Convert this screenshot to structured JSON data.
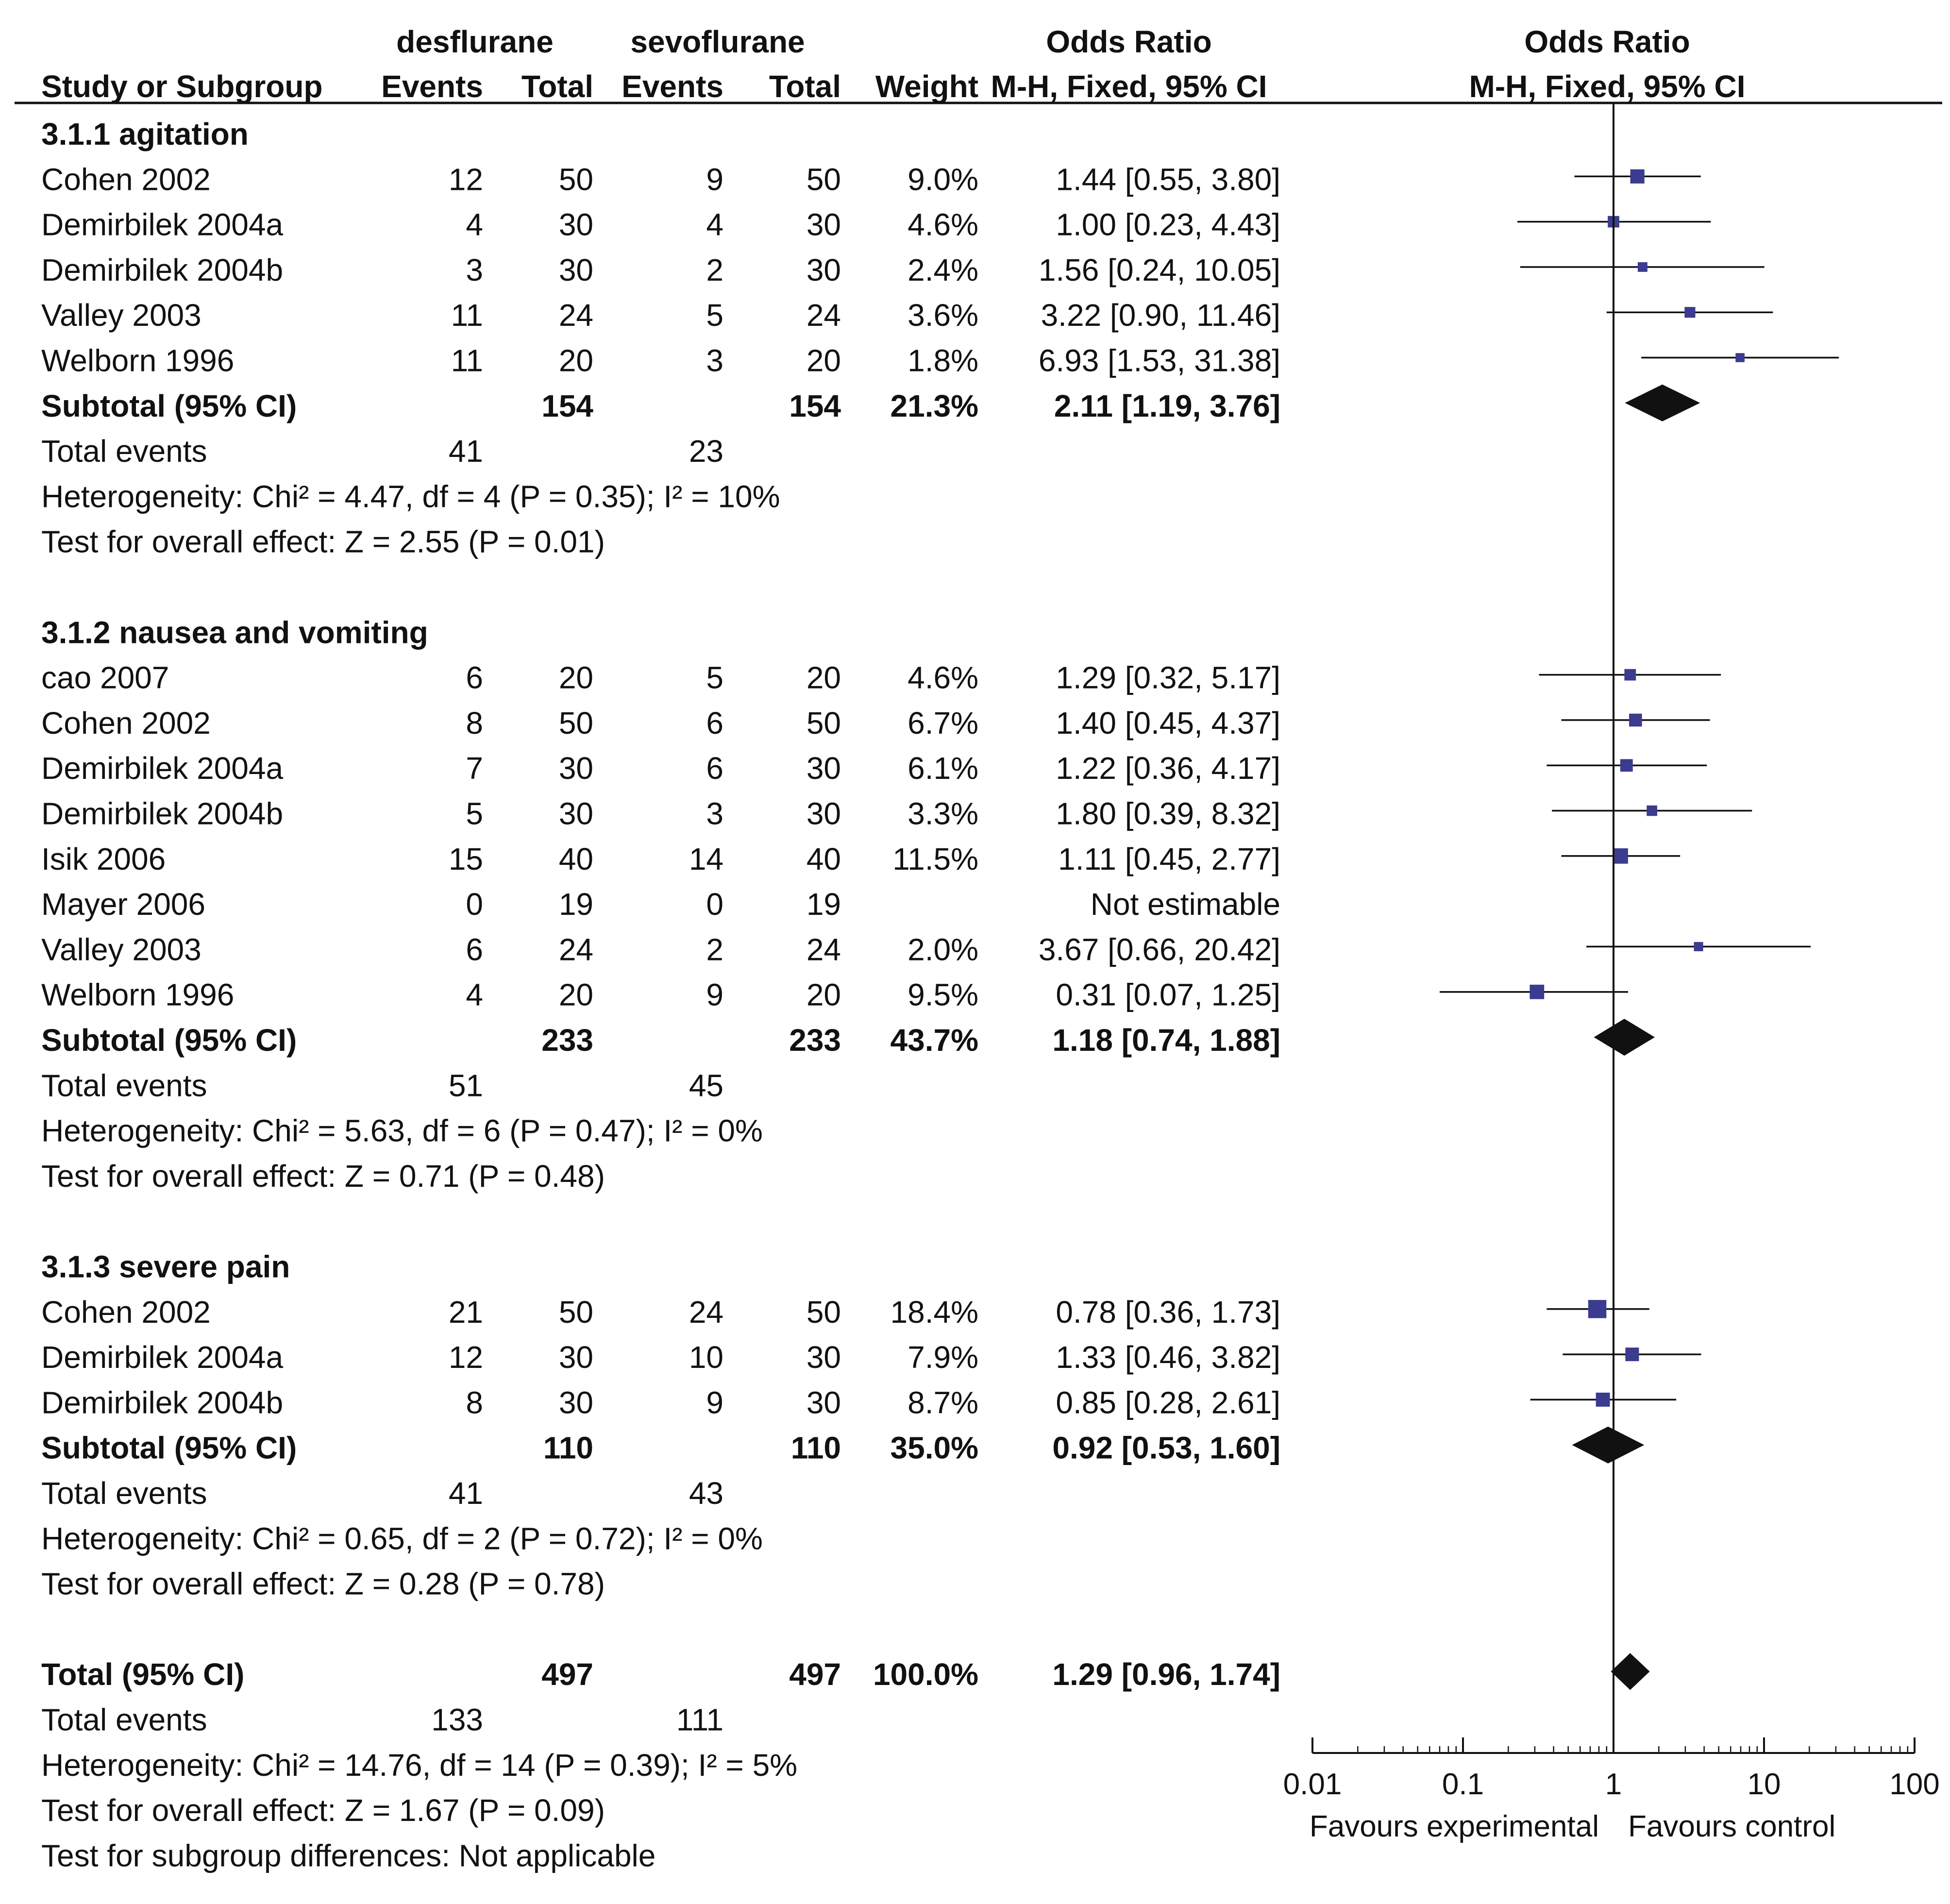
{
  "header": {
    "group1": "desflurane",
    "group2": "sevoflurane",
    "or_title": "Odds Ratio",
    "or_method": "M-H, Fixed, 95% CI",
    "plot_title": "Odds Ratio",
    "plot_method": "M-H, Fixed, 95% CI",
    "study_col": "Study or Subgroup",
    "events": "Events",
    "total": "Total",
    "weight": "Weight"
  },
  "chart_data": {
    "type": "forest",
    "x_scale": "log",
    "xlim": [
      0.01,
      100
    ],
    "x_ticks": [
      "0.01",
      "0.1",
      "1",
      "10",
      "100"
    ],
    "x_tick_values": [
      0.01,
      0.1,
      1,
      10,
      100
    ],
    "x_left_label": "Favours experimental",
    "x_right_label": "Favours control",
    "subgroups": [
      {
        "title": "3.1.1 agitation",
        "studies": [
          {
            "name": "Cohen 2002",
            "e1": "12",
            "t1": "50",
            "e2": "9",
            "t2": "50",
            "weight": "9.0%",
            "ci_text": "1.44 [0.55, 3.80]",
            "or": 1.44,
            "lo": 0.55,
            "hi": 3.8
          },
          {
            "name": "Demirbilek 2004a",
            "e1": "4",
            "t1": "30",
            "e2": "4",
            "t2": "30",
            "weight": "4.6%",
            "ci_text": "1.00 [0.23, 4.43]",
            "or": 1.0,
            "lo": 0.23,
            "hi": 4.43
          },
          {
            "name": "Demirbilek 2004b",
            "e1": "3",
            "t1": "30",
            "e2": "2",
            "t2": "30",
            "weight": "2.4%",
            "ci_text": "1.56 [0.24, 10.05]",
            "or": 1.56,
            "lo": 0.24,
            "hi": 10.05
          },
          {
            "name": "Valley 2003",
            "e1": "11",
            "t1": "24",
            "e2": "5",
            "t2": "24",
            "weight": "3.6%",
            "ci_text": "3.22 [0.90, 11.46]",
            "or": 3.22,
            "lo": 0.9,
            "hi": 11.46
          },
          {
            "name": "Welborn 1996",
            "e1": "11",
            "t1": "20",
            "e2": "3",
            "t2": "20",
            "weight": "1.8%",
            "ci_text": "6.93 [1.53, 31.38]",
            "or": 6.93,
            "lo": 1.53,
            "hi": 31.38
          }
        ],
        "subtotal": {
          "label": "Subtotal (95% CI)",
          "t1": "154",
          "t2": "154",
          "weight": "21.3%",
          "ci_text": "2.11 [1.19, 3.76]",
          "or": 2.11,
          "lo": 1.19,
          "hi": 3.76
        },
        "events_label": "Total events",
        "events1": "41",
        "events2": "23",
        "heterogeneity": "Heterogeneity: Chi² = 4.47, df = 4 (P = 0.35); I² = 10%",
        "overall": "Test for overall effect: Z = 2.55 (P = 0.01)"
      },
      {
        "title": "3.1.2 nausea and vomiting",
        "studies": [
          {
            "name": "cao 2007",
            "e1": "6",
            "t1": "20",
            "e2": "5",
            "t2": "20",
            "weight": "4.6%",
            "ci_text": "1.29 [0.32, 5.17]",
            "or": 1.29,
            "lo": 0.32,
            "hi": 5.17
          },
          {
            "name": "Cohen 2002",
            "e1": "8",
            "t1": "50",
            "e2": "6",
            "t2": "50",
            "weight": "6.7%",
            "ci_text": "1.40 [0.45, 4.37]",
            "or": 1.4,
            "lo": 0.45,
            "hi": 4.37
          },
          {
            "name": "Demirbilek 2004a",
            "e1": "7",
            "t1": "30",
            "e2": "6",
            "t2": "30",
            "weight": "6.1%",
            "ci_text": "1.22 [0.36, 4.17]",
            "or": 1.22,
            "lo": 0.36,
            "hi": 4.17
          },
          {
            "name": "Demirbilek 2004b",
            "e1": "5",
            "t1": "30",
            "e2": "3",
            "t2": "30",
            "weight": "3.3%",
            "ci_text": "1.80 [0.39, 8.32]",
            "or": 1.8,
            "lo": 0.39,
            "hi": 8.32
          },
          {
            "name": "Isik 2006",
            "e1": "15",
            "t1": "40",
            "e2": "14",
            "t2": "40",
            "weight": "11.5%",
            "ci_text": "1.11 [0.45, 2.77]",
            "or": 1.11,
            "lo": 0.45,
            "hi": 2.77
          },
          {
            "name": "Mayer 2006",
            "e1": "0",
            "t1": "19",
            "e2": "0",
            "t2": "19",
            "weight": "",
            "ci_text": "Not estimable",
            "or": null,
            "lo": null,
            "hi": null
          },
          {
            "name": "Valley 2003",
            "e1": "6",
            "t1": "24",
            "e2": "2",
            "t2": "24",
            "weight": "2.0%",
            "ci_text": "3.67 [0.66, 20.42]",
            "or": 3.67,
            "lo": 0.66,
            "hi": 20.42
          },
          {
            "name": "Welborn 1996",
            "e1": "4",
            "t1": "20",
            "e2": "9",
            "t2": "20",
            "weight": "9.5%",
            "ci_text": "0.31 [0.07, 1.25]",
            "or": 0.31,
            "lo": 0.07,
            "hi": 1.25
          }
        ],
        "subtotal": {
          "label": "Subtotal (95% CI)",
          "t1": "233",
          "t2": "233",
          "weight": "43.7%",
          "ci_text": "1.18 [0.74, 1.88]",
          "or": 1.18,
          "lo": 0.74,
          "hi": 1.88
        },
        "events_label": "Total events",
        "events1": "51",
        "events2": "45",
        "heterogeneity": "Heterogeneity: Chi² = 5.63, df = 6 (P = 0.47); I² = 0%",
        "overall": "Test for overall effect: Z = 0.71 (P = 0.48)"
      },
      {
        "title": "3.1.3 severe pain",
        "studies": [
          {
            "name": "Cohen 2002",
            "e1": "21",
            "t1": "50",
            "e2": "24",
            "t2": "50",
            "weight": "18.4%",
            "ci_text": "0.78 [0.36, 1.73]",
            "or": 0.78,
            "lo": 0.36,
            "hi": 1.73
          },
          {
            "name": "Demirbilek 2004a",
            "e1": "12",
            "t1": "30",
            "e2": "10",
            "t2": "30",
            "weight": "7.9%",
            "ci_text": "1.33 [0.46, 3.82]",
            "or": 1.33,
            "lo": 0.46,
            "hi": 3.82
          },
          {
            "name": "Demirbilek 2004b",
            "e1": "8",
            "t1": "30",
            "e2": "9",
            "t2": "30",
            "weight": "8.7%",
            "ci_text": "0.85 [0.28, 2.61]",
            "or": 0.85,
            "lo": 0.28,
            "hi": 2.61
          }
        ],
        "subtotal": {
          "label": "Subtotal (95% CI)",
          "t1": "110",
          "t2": "110",
          "weight": "35.0%",
          "ci_text": "0.92 [0.53, 1.60]",
          "or": 0.92,
          "lo": 0.53,
          "hi": 1.6
        },
        "events_label": "Total events",
        "events1": "41",
        "events2": "43",
        "heterogeneity": "Heterogeneity: Chi² = 0.65, df = 2 (P = 0.72); I² = 0%",
        "overall": "Test for overall effect: Z = 0.28 (P = 0.78)"
      }
    ],
    "total": {
      "label": "Total (95% CI)",
      "t1": "497",
      "t2": "497",
      "weight": "100.0%",
      "ci_text": "1.29 [0.96, 1.74]",
      "or": 1.29,
      "lo": 0.96,
      "hi": 1.74,
      "events_label": "Total events",
      "events1": "133",
      "events2": "111",
      "heterogeneity": "Heterogeneity: Chi² = 14.76, df = 14 (P = 0.39); I² = 5%",
      "overall": "Test for overall effect: Z = 1.67 (P = 0.09)",
      "subgroup_test": "Test for subgroup differences: Not applicable"
    },
    "colors": {
      "study_marker": "#3b3b8f",
      "diamond": "#111111",
      "lines": "#111111"
    }
  }
}
